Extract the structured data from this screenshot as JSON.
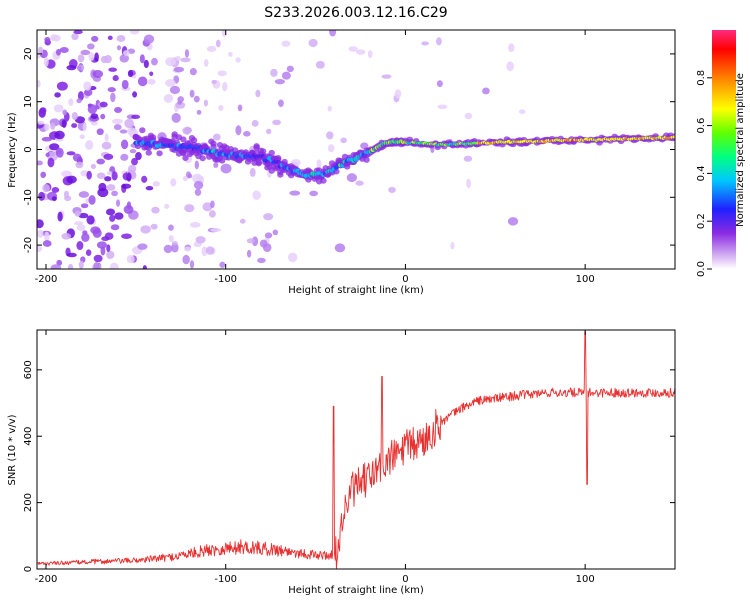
{
  "title": "S233.2026.003.12.16.C29",
  "chart_data": [
    {
      "type": "heatmap",
      "name": "spectrogram",
      "xlabel": "Height of straight line (km)",
      "ylabel": "Frequency (Hz)",
      "xlim": [
        -205,
        150
      ],
      "ylim": [
        -25,
        25
      ],
      "xticks": [
        -200,
        -100,
        0,
        100
      ],
      "yticks": [
        -20,
        -10,
        0,
        10,
        20
      ],
      "colorbar": {
        "label": "Normalized spectral amplitude",
        "range": [
          0,
          1
        ],
        "ticks": [
          0.0,
          0.2,
          0.4,
          0.6,
          0.8
        ],
        "colors": [
          "#ffffff",
          "#d4b3f5",
          "#8a2be2",
          "#3030ff",
          "#00c8ff",
          "#00ff80",
          "#80ff00",
          "#ffff00",
          "#ff8000",
          "#ff0000",
          "#ff3080"
        ]
      },
      "ridge_center_hz": [
        {
          "x": -145,
          "y": 1.5
        },
        {
          "x": -120,
          "y": 0.5
        },
        {
          "x": -100,
          "y": -1.0
        },
        {
          "x": -80,
          "y": -1.5
        },
        {
          "x": -65,
          "y": -4.0
        },
        {
          "x": -55,
          "y": -5.5
        },
        {
          "x": -45,
          "y": -5.0
        },
        {
          "x": -35,
          "y": -3.0
        },
        {
          "x": -20,
          "y": -0.5
        },
        {
          "x": -10,
          "y": 1.5
        },
        {
          "x": 0,
          "y": 1.5
        },
        {
          "x": 20,
          "y": 1.0
        },
        {
          "x": 50,
          "y": 1.5
        },
        {
          "x": 100,
          "y": 2.0
        },
        {
          "x": 150,
          "y": 2.5
        }
      ]
    },
    {
      "type": "line",
      "name": "snr",
      "xlabel": "Height of straight line (km)",
      "ylabel": "SNR (10 * v/v)",
      "xlim": [
        -205,
        150
      ],
      "ylim": [
        0,
        720
      ],
      "xticks": [
        -200,
        -100,
        0,
        100
      ],
      "yticks": [
        0,
        200,
        400,
        600
      ],
      "color": "#e83030",
      "envelope": [
        {
          "x": -205,
          "y": 15
        },
        {
          "x": -180,
          "y": 20
        },
        {
          "x": -150,
          "y": 25
        },
        {
          "x": -130,
          "y": 35
        },
        {
          "x": -110,
          "y": 55
        },
        {
          "x": -90,
          "y": 65
        },
        {
          "x": -70,
          "y": 55
        },
        {
          "x": -50,
          "y": 40
        },
        {
          "x": -38,
          "y": 40
        },
        {
          "x": -35,
          "y": 150
        },
        {
          "x": -30,
          "y": 230
        },
        {
          "x": -20,
          "y": 270
        },
        {
          "x": -10,
          "y": 320
        },
        {
          "x": 0,
          "y": 360
        },
        {
          "x": 10,
          "y": 380
        },
        {
          "x": 20,
          "y": 440
        },
        {
          "x": 30,
          "y": 480
        },
        {
          "x": 40,
          "y": 505
        },
        {
          "x": 60,
          "y": 520
        },
        {
          "x": 80,
          "y": 530
        },
        {
          "x": 100,
          "y": 530
        },
        {
          "x": 120,
          "y": 530
        },
        {
          "x": 150,
          "y": 530
        }
      ],
      "spikes": [
        {
          "x": -40,
          "y": 490
        },
        {
          "x": -13,
          "y": 580
        },
        {
          "x": 100,
          "y": 715
        },
        {
          "x": 101,
          "y": 255
        }
      ]
    }
  ]
}
